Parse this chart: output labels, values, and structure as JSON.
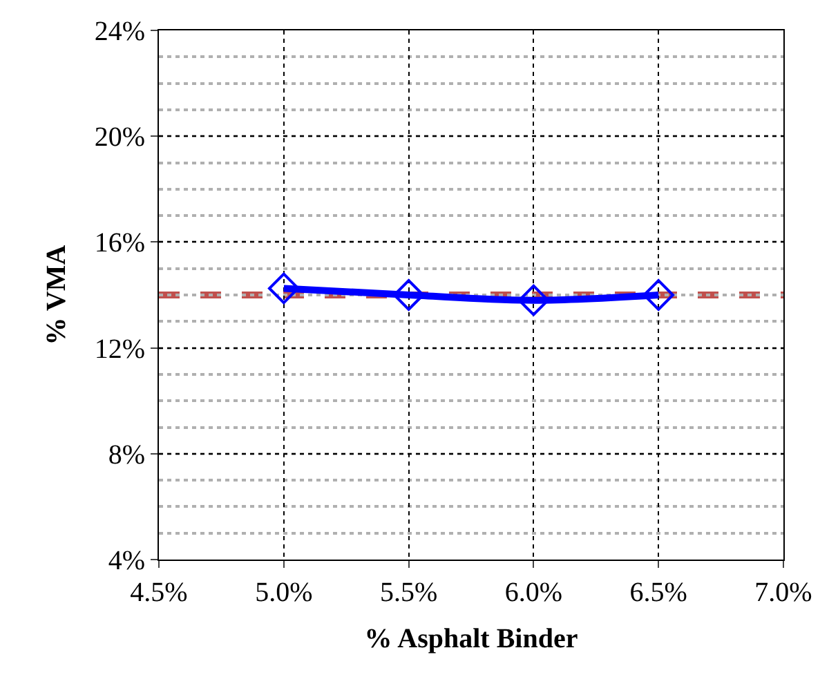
{
  "chart_data": {
    "type": "line",
    "xlabel": "% Asphalt Binder",
    "ylabel": "% VMA",
    "x": [
      5.0,
      5.5,
      6.0,
      6.5
    ],
    "series": [
      {
        "color": "#0000ff",
        "values": [
          14.25,
          14.0,
          13.8,
          14.0
        ]
      }
    ],
    "marker": "diamond",
    "line_style": "solid",
    "xlim": [
      4.5,
      7.0
    ],
    "xticks": [
      {
        "value": 4.5,
        "label": "4.5%"
      },
      {
        "value": 5.0,
        "label": "5.0%"
      },
      {
        "value": 5.5,
        "label": "5.5%"
      },
      {
        "value": 6.0,
        "label": "6.0%"
      },
      {
        "value": 6.5,
        "label": "6.5%"
      },
      {
        "value": 7.0,
        "label": "7.0%"
      }
    ],
    "ylim": [
      4,
      24
    ],
    "yticks": [
      {
        "value": 4,
        "label": "4%"
      },
      {
        "value": 8,
        "label": "8%"
      },
      {
        "value": 12,
        "label": "12%"
      },
      {
        "value": 16,
        "label": "16%"
      },
      {
        "value": 20,
        "label": "20%"
      },
      {
        "value": 24,
        "label": "24%"
      }
    ],
    "ref_lines": [
      {
        "axis": "y",
        "value": 14,
        "color": "#c0504d",
        "line_style": "dashed"
      }
    ],
    "grid": true,
    "legend": false
  }
}
